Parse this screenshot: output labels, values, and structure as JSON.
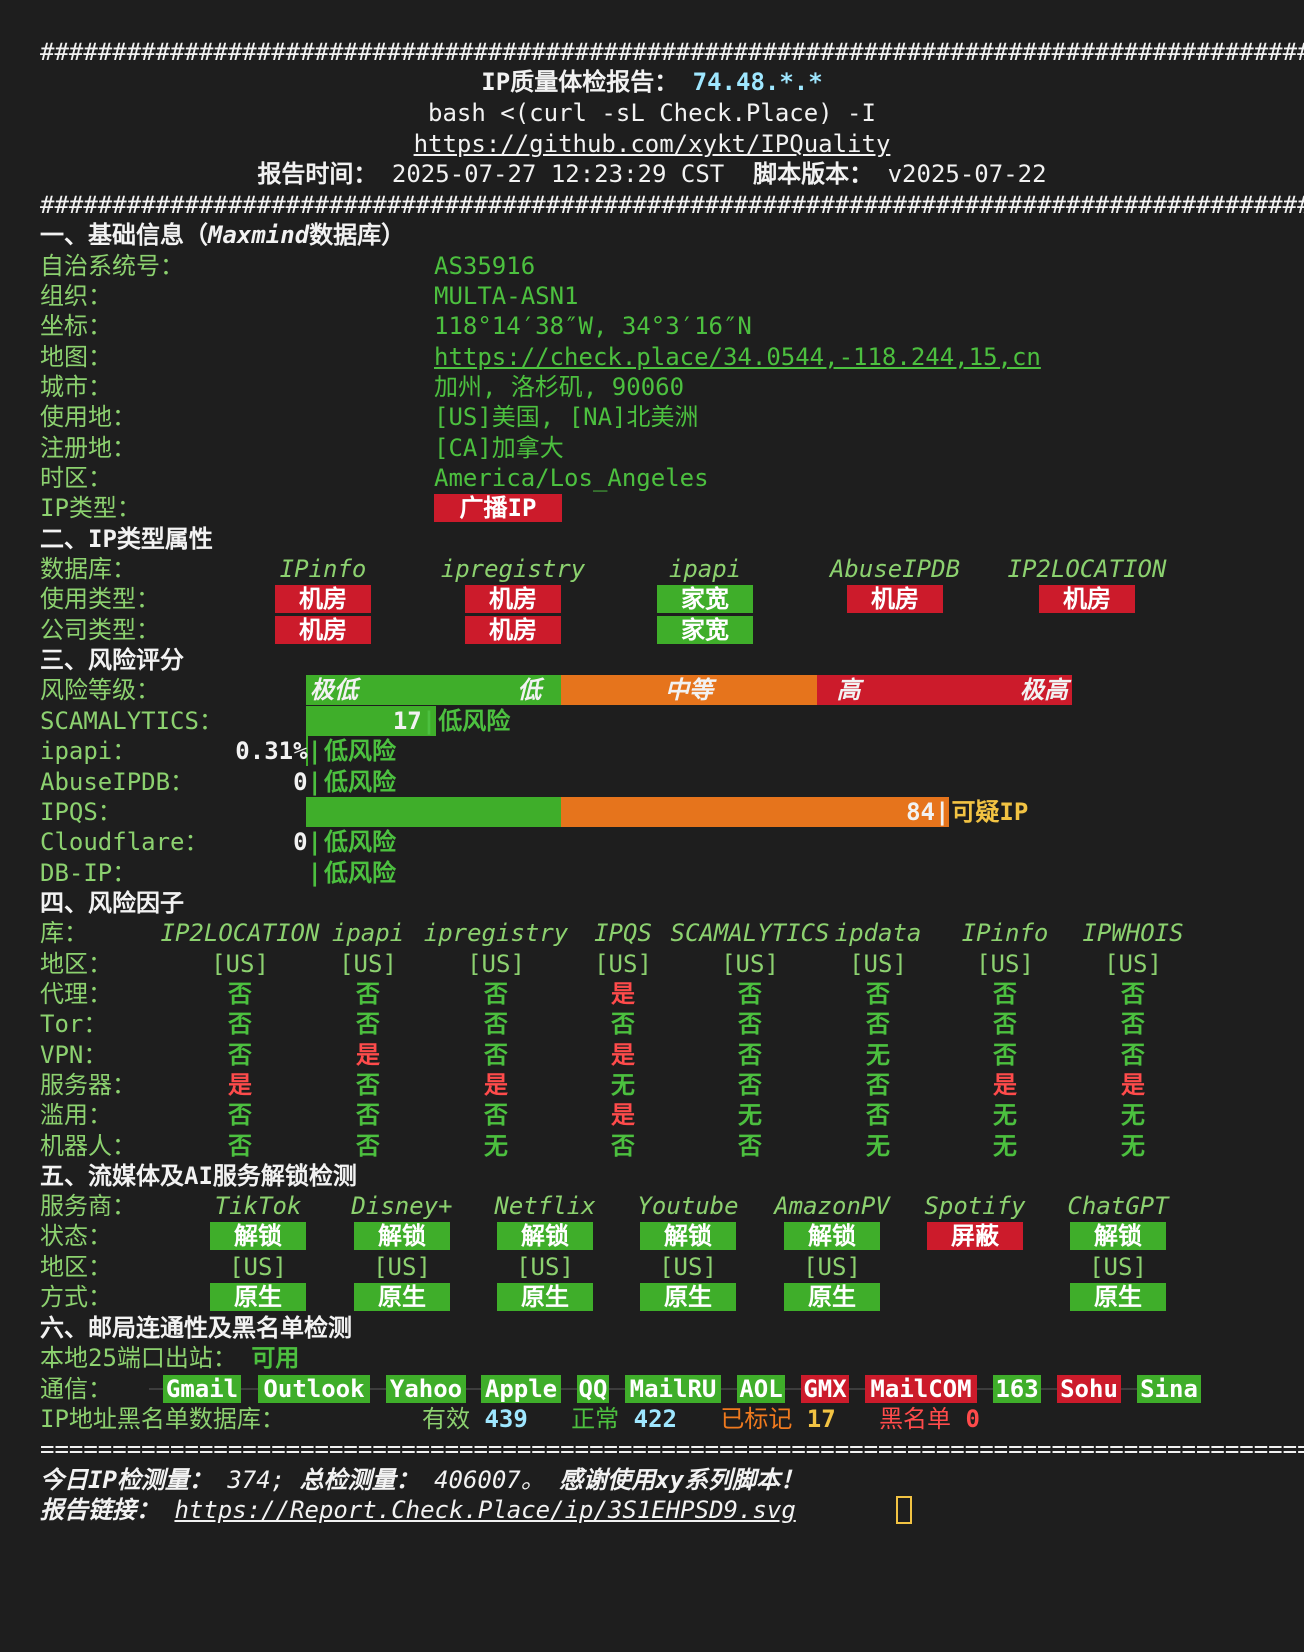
{
  "banner": {
    "hash": "##########################################################################################",
    "title": "IP质量体检报告：",
    "ip": "74.48.*.*",
    "command": "bash <(curl -sL Check.Place) -I",
    "repo": "https://github.com/xykt/IPQuality",
    "report_time_label": "报告时间：",
    "report_time": "2025-07-27 12:23:29 CST",
    "version_label": "脚本版本：",
    "version": "v2025-07-22"
  },
  "s1": {
    "title": "一、基础信息（",
    "db": "Maxmind",
    "title_tail": "数据库）",
    "rows": [
      {
        "label": "自治系统号：",
        "value": "AS35916"
      },
      {
        "label": "组织：",
        "value": "MULTA-ASN1"
      },
      {
        "label": "坐标：",
        "value": "118°14′38″W, 34°3′16″N"
      },
      {
        "label": "地图：",
        "value": "https://check.place/34.0544,-118.244,15,cn"
      },
      {
        "label": "城市：",
        "value": "加州, 洛杉矶, 90060"
      },
      {
        "label": "使用地：",
        "value": "[US]美国, [NA]北美洲"
      },
      {
        "label": "注册地：",
        "value": "[CA]加拿大"
      },
      {
        "label": "时区：",
        "value": "America/Los_Angeles"
      },
      {
        "label": "IP类型：",
        "value": "广播IP"
      }
    ]
  },
  "s2": {
    "title": "二、IP类型属性",
    "db_label": "数据库：",
    "use_label": "使用类型：",
    "company_label": "公司类型：",
    "dbs": [
      "IPinfo",
      "ipregistry",
      "ipapi",
      "AbuseIPDB",
      "IP2LOCATION"
    ],
    "use": [
      "机房",
      "机房",
      "家宽",
      "机房",
      "机房"
    ],
    "company": [
      "机房",
      "机房",
      "家宽",
      "",
      ""
    ]
  },
  "s3": {
    "title": "三、风险评分",
    "level_label": "风险等级：",
    "levels": [
      "极低",
      "低",
      "中等",
      "高",
      "极高"
    ],
    "rows": [
      {
        "label": "SCAMALYTICS：",
        "score": "17",
        "sep": "|",
        "verdict": "低风险",
        "score_fraction": 0.17
      },
      {
        "label": "ipapi：",
        "score": "0.31%",
        "sep": "|",
        "verdict": "低风险",
        "score_fraction": 0.0031
      },
      {
        "label": "AbuseIPDB：",
        "score": "0",
        "sep": "|",
        "verdict": "低风险",
        "score_fraction": 0
      },
      {
        "label": "IPQS：",
        "score": "84",
        "sep": "|",
        "verdict": "可疑IP",
        "score_fraction": 0.84
      },
      {
        "label": "Cloudflare：",
        "score": "0",
        "sep": "|",
        "verdict": "低风险",
        "score_fraction": 0
      },
      {
        "label": "DB-IP：",
        "score": "",
        "sep": "|",
        "verdict": "低风险",
        "score_fraction": 0
      }
    ]
  },
  "s4": {
    "title": "四、风险因子",
    "lib_label": "库：",
    "dbs": [
      "IP2LOCATION",
      "ipapi",
      "ipregistry",
      "IPQS",
      "SCAMALYTICS",
      "ipdata",
      "IPinfo",
      "IPWHOIS"
    ],
    "rows": [
      {
        "label": "地区：",
        "values": [
          "[US]",
          "[US]",
          "[US]",
          "[US]",
          "[US]",
          "[US]",
          "[US]",
          "[US]"
        ]
      },
      {
        "label": "代理：",
        "values": [
          "否",
          "否",
          "否",
          "是",
          "否",
          "否",
          "否",
          "否"
        ]
      },
      {
        "label": "Tor：",
        "values": [
          "否",
          "否",
          "否",
          "否",
          "否",
          "否",
          "否",
          "否"
        ]
      },
      {
        "label": "VPN：",
        "values": [
          "否",
          "是",
          "否",
          "是",
          "否",
          "无",
          "否",
          "否"
        ]
      },
      {
        "label": "服务器：",
        "values": [
          "是",
          "否",
          "是",
          "无",
          "否",
          "否",
          "是",
          "是"
        ]
      },
      {
        "label": "滥用：",
        "values": [
          "否",
          "否",
          "否",
          "是",
          "无",
          "否",
          "无",
          "无"
        ]
      },
      {
        "label": "机器人：",
        "values": [
          "否",
          "否",
          "无",
          "否",
          "否",
          "无",
          "无",
          "无"
        ]
      }
    ]
  },
  "s5": {
    "title": "五、流媒体及AI服务解锁检测",
    "provider_label": "服务商：",
    "status_label": "状态：",
    "region_label": "地区：",
    "mode_label": "方式：",
    "services": [
      {
        "name": "TikTok",
        "status": "解锁",
        "region": "[US]",
        "mode": "原生"
      },
      {
        "name": "Disney+",
        "status": "解锁",
        "region": "[US]",
        "mode": "原生"
      },
      {
        "name": "Netflix",
        "status": "解锁",
        "region": "[US]",
        "mode": "原生"
      },
      {
        "name": "Youtube",
        "status": "解锁",
        "region": "[US]",
        "mode": "原生"
      },
      {
        "name": "AmazonPV",
        "status": "解锁",
        "region": "[US]",
        "mode": "原生"
      },
      {
        "name": "Spotify",
        "status": "屏蔽",
        "region": "",
        "mode": ""
      },
      {
        "name": "ChatGPT",
        "status": "解锁",
        "region": "[US]",
        "mode": "原生"
      }
    ]
  },
  "s6": {
    "title": "六、邮局连通性及黑名单检测",
    "port_label": "本地25端口出站：",
    "port_value": "可用",
    "comm_label": "通信：",
    "mail": [
      {
        "name": "Gmail",
        "ok": true
      },
      {
        "name": "Outlook",
        "ok": true
      },
      {
        "name": "Yahoo",
        "ok": true
      },
      {
        "name": "Apple",
        "ok": true
      },
      {
        "name": "QQ",
        "ok": true
      },
      {
        "name": "MailRU",
        "ok": true
      },
      {
        "name": "AOL",
        "ok": true
      },
      {
        "name": "GMX",
        "ok": false
      },
      {
        "name": "MailCOM",
        "ok": false
      },
      {
        "name": "163",
        "ok": true
      },
      {
        "name": "Sohu",
        "ok": false
      },
      {
        "name": "Sina",
        "ok": true
      }
    ],
    "bl_label": "IP地址黑名单数据库：",
    "valid_label": "有效",
    "valid": "439",
    "normal_label": "正常",
    "normal": "422",
    "marked_label": "已标记",
    "marked": "17",
    "black_label": "黑名单",
    "black": "0"
  },
  "footer": {
    "rule": "==========================================================================================",
    "today_label": "今日IP检测量：",
    "today": "374;",
    "total_label": "总检测量：",
    "total": "406007。",
    "thanks": "感谢使用xy系列脚本！",
    "link_label": "报告链接：",
    "link": "https://Report.Check.Place/ip/3S1EHPSD9.svg"
  },
  "colors": {
    "bg": "#1e1e1e",
    "green": "#3fae2a",
    "red": "#cc1b2b",
    "orange": "#e6741c",
    "label": "#8cd16f"
  }
}
